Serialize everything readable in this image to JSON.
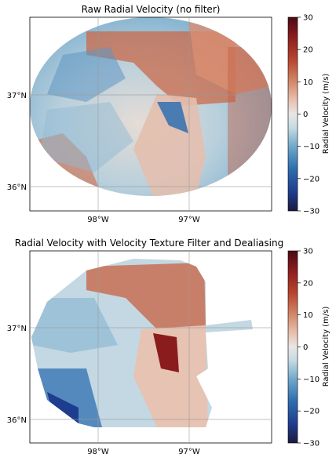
{
  "chart_data": [
    {
      "type": "heatmap",
      "title": "Raw Radial Velocity (no filter)",
      "x_ticks": [
        "98°W",
        "97°W"
      ],
      "y_ticks": [
        "37°N",
        "36°N"
      ],
      "colorbar": {
        "label": "Radial Velocity (m/s)",
        "range": [
          -30,
          30
        ],
        "ticks": [
          30,
          20,
          10,
          0,
          -10,
          -20,
          -30
        ]
      },
      "colormap": [
        "#1b1a3f",
        "#1f3d8f",
        "#2f6fb0",
        "#6ea7c9",
        "#c5dbe3",
        "#e9e6e4",
        "#e8c2b0",
        "#d28767",
        "#b8452f",
        "#8a1c1e",
        "#4a0a14"
      ],
      "grid": true
    },
    {
      "type": "heatmap",
      "title": "Radial Velocity with Velocity Texture Filter and Dealiasing",
      "x_ticks": [
        "98°W",
        "97°W"
      ],
      "y_ticks": [
        "37°N",
        "36°N"
      ],
      "colorbar": {
        "label": "Radial Velocity (m/s)",
        "range": [
          -30,
          30
        ],
        "ticks": [
          30,
          20,
          10,
          0,
          -10,
          -20,
          -30
        ]
      },
      "colormap": [
        "#1b1a3f",
        "#1f3d8f",
        "#2f6fb0",
        "#6ea7c9",
        "#c5dbe3",
        "#e9e6e4",
        "#e8c2b0",
        "#d28767",
        "#b8452f",
        "#8a1c1e",
        "#4a0a14"
      ],
      "grid": true
    }
  ]
}
